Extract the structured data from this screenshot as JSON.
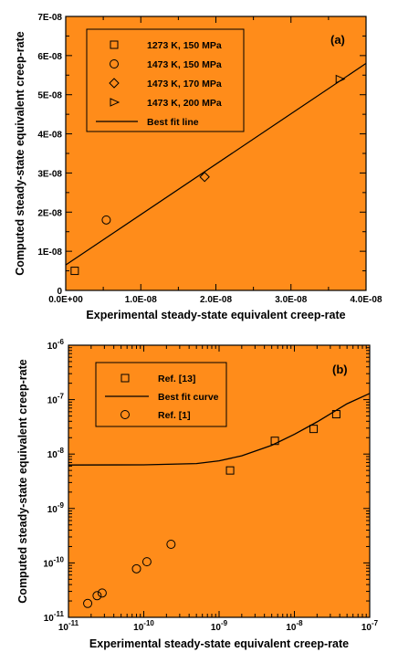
{
  "colors": {
    "plot_bg": "#ff8c1a",
    "axis": "#000000",
    "marker_fill": "#ffffff"
  },
  "chart_data": [
    {
      "type": "scatter",
      "panel_label": "(a)",
      "xlabel": "Experimental steady-state equivalent creep-rate",
      "ylabel": "Computed steady-state equivalent creep-rate",
      "xlim": [
        0,
        4e-08
      ],
      "ylim": [
        0,
        7e-08
      ],
      "x_ticks": [
        0,
        1e-08,
        2e-08,
        3e-08,
        4e-08
      ],
      "x_tick_labels": [
        "0.0E+00",
        "1.0E-08",
        "2.0E-08",
        "3.0E-08",
        "4.0E-08"
      ],
      "y_ticks": [
        0,
        1e-08,
        2e-08,
        3e-08,
        4e-08,
        5e-08,
        6e-08,
        7e-08
      ],
      "y_tick_labels": [
        "0",
        "1E-08",
        "2E-08",
        "3E-08",
        "4E-08",
        "5E-08",
        "6E-08",
        "7E-08"
      ],
      "grid": false,
      "legend_position": "top-left",
      "series": [
        {
          "name": "1273 K, 150 MPa",
          "marker": "square",
          "points": [
            [
              1.2e-09,
              5e-09
            ]
          ]
        },
        {
          "name": "1473 K, 150 MPa",
          "marker": "circle",
          "points": [
            [
              5.4e-09,
              1.8e-08
            ]
          ]
        },
        {
          "name": "1473 K, 170 MPa",
          "marker": "diamond",
          "points": [
            [
              1.85e-08,
              2.9e-08
            ]
          ]
        },
        {
          "name": "1473 K, 200 MPa",
          "marker": "triangle-right",
          "points": [
            [
              3.65e-08,
              5.4e-08
            ]
          ]
        }
      ],
      "fit_line": {
        "name": "Best fit line",
        "points": [
          [
            0,
            6.5e-09
          ],
          [
            4e-08,
            5.8e-08
          ]
        ]
      }
    },
    {
      "type": "scatter",
      "panel_label": "(b)",
      "xlabel": "Experimental steady-state equivalent creep-rate",
      "ylabel": "Computed steady-state equivalent creep-rate",
      "xscale": "log",
      "yscale": "log",
      "xlim": [
        1e-11,
        1e-07
      ],
      "ylim": [
        1e-11,
        1e-06
      ],
      "x_tick_exponents": [
        -11,
        -10,
        -9,
        -8,
        -7
      ],
      "y_tick_exponents": [
        -11,
        -10,
        -9,
        -8,
        -7,
        -6
      ],
      "grid": false,
      "legend_position": "top-left",
      "series": [
        {
          "name": "Ref. [13]",
          "marker": "square",
          "points": [
            [
              1.4e-09,
              5e-09
            ],
            [
              5.5e-09,
              1.75e-08
            ],
            [
              1.8e-08,
              2.9e-08
            ],
            [
              3.6e-08,
              5.4e-08
            ]
          ]
        },
        {
          "name": "Ref. [1]",
          "marker": "circle",
          "points": [
            [
              1.8e-11,
              1.8e-11
            ],
            [
              2.4e-11,
              2.5e-11
            ],
            [
              2.8e-11,
              2.8e-11
            ],
            [
              8e-11,
              7.8e-11
            ],
            [
              1.1e-10,
              1.05e-10
            ],
            [
              2.3e-10,
              2.2e-10
            ]
          ]
        }
      ],
      "fit_curve": {
        "name": "Best fit curve",
        "points": [
          [
            1e-11,
            6.3e-09
          ],
          [
            1e-10,
            6.35e-09
          ],
          [
            5e-10,
            6.7e-09
          ],
          [
            1e-09,
            7.5e-09
          ],
          [
            2e-09,
            9.3e-09
          ],
          [
            5e-09,
            1.45e-08
          ],
          [
            1e-08,
            2.3e-08
          ],
          [
            2e-08,
            3.9e-08
          ],
          [
            5e-08,
            8.4e-08
          ],
          [
            1e-07,
            1.3e-07
          ]
        ]
      }
    }
  ]
}
